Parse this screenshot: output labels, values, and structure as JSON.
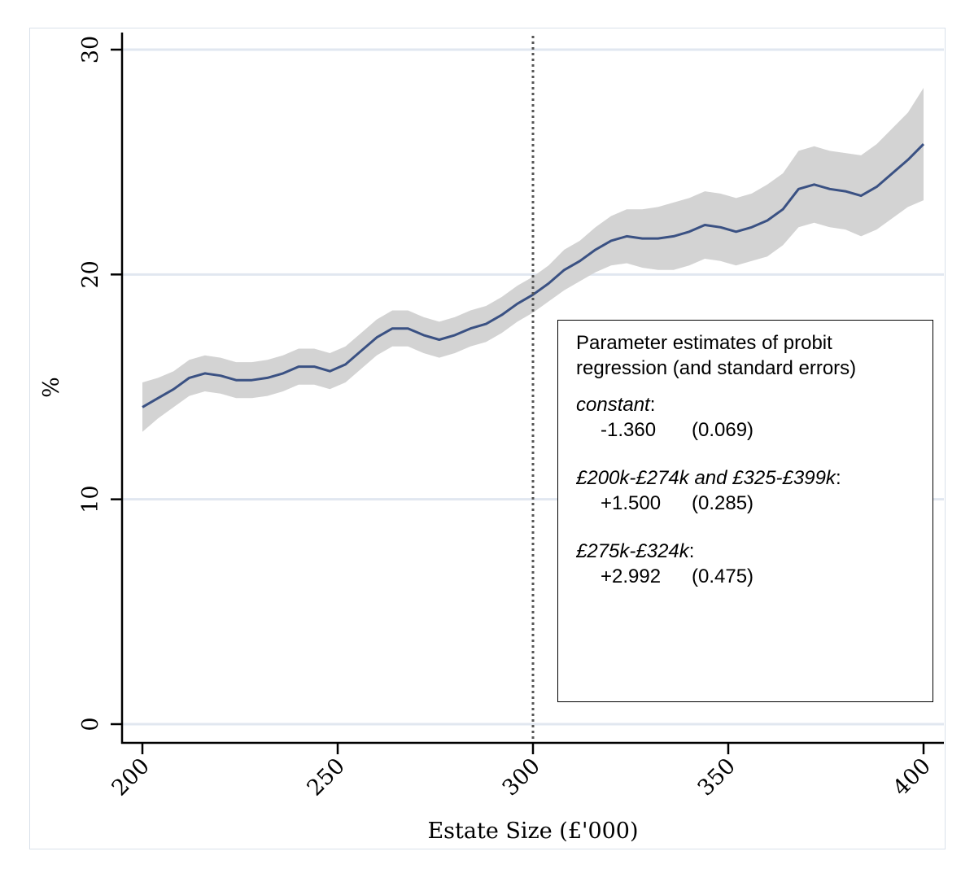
{
  "chart_data": {
    "type": "line",
    "xlabel": "Estate Size (£'000)",
    "ylabel": "%",
    "xlim": [
      200,
      400
    ],
    "ylim": [
      0,
      30
    ],
    "x_ticks": [
      200,
      250,
      300,
      350,
      400
    ],
    "y_ticks": [
      0,
      10,
      20,
      30
    ],
    "grid": "horizontal",
    "reference_line_x": 300,
    "series": [
      {
        "x": [
          200,
          204,
          208,
          212,
          216,
          220,
          224,
          228,
          232,
          236,
          240,
          244,
          248,
          252,
          256,
          260,
          264,
          268,
          272,
          276,
          280,
          284,
          288,
          292,
          296,
          300,
          304,
          308,
          312,
          316,
          320,
          324,
          328,
          332,
          336,
          340,
          344,
          348,
          352,
          356,
          360,
          364,
          368,
          372,
          376,
          380,
          384,
          388,
          392,
          396,
          400
        ],
        "y": [
          14.1,
          14.5,
          14.9,
          15.4,
          15.6,
          15.5,
          15.3,
          15.3,
          15.4,
          15.6,
          15.9,
          15.9,
          15.7,
          16.0,
          16.6,
          17.2,
          17.6,
          17.6,
          17.3,
          17.1,
          17.3,
          17.6,
          17.8,
          18.2,
          18.7,
          19.1,
          19.6,
          20.2,
          20.6,
          21.1,
          21.5,
          21.7,
          21.6,
          21.6,
          21.7,
          21.9,
          22.2,
          22.1,
          21.9,
          22.1,
          22.4,
          22.9,
          23.8,
          24.0,
          23.8,
          23.7,
          23.5,
          23.9,
          24.5,
          25.1,
          25.8
        ],
        "ci_lower": [
          13.0,
          13.6,
          14.1,
          14.6,
          14.8,
          14.7,
          14.5,
          14.5,
          14.6,
          14.8,
          15.1,
          15.1,
          14.9,
          15.2,
          15.8,
          16.4,
          16.8,
          16.8,
          16.5,
          16.3,
          16.5,
          16.8,
          17.0,
          17.4,
          17.9,
          18.3,
          18.8,
          19.3,
          19.7,
          20.1,
          20.4,
          20.5,
          20.3,
          20.2,
          20.2,
          20.4,
          20.7,
          20.6,
          20.4,
          20.6,
          20.8,
          21.3,
          22.1,
          22.3,
          22.1,
          22.0,
          21.7,
          22.0,
          22.5,
          23.0,
          23.3
        ],
        "ci_upper": [
          15.2,
          15.4,
          15.7,
          16.2,
          16.4,
          16.3,
          16.1,
          16.1,
          16.2,
          16.4,
          16.7,
          16.7,
          16.5,
          16.8,
          17.4,
          18.0,
          18.4,
          18.4,
          18.1,
          17.9,
          18.1,
          18.4,
          18.6,
          19.0,
          19.5,
          19.9,
          20.4,
          21.1,
          21.5,
          22.1,
          22.6,
          22.9,
          22.9,
          23.0,
          23.2,
          23.4,
          23.7,
          23.6,
          23.4,
          23.6,
          24.0,
          24.5,
          25.5,
          25.7,
          25.5,
          25.4,
          25.3,
          25.8,
          26.5,
          27.2,
          28.3
        ]
      }
    ]
  },
  "annotation": {
    "title": "Parameter estimates of probit regression (and standard errors)",
    "groups": [
      {
        "label": "constant",
        "colon": ":",
        "estimate": "-1.360",
        "se": "(0.069)"
      },
      {
        "label": "£200k-£274k and £325-£399k",
        "colon": ":",
        "estimate": "+1.500",
        "se": "(0.285)"
      },
      {
        "label": "£275k-£324k",
        "colon": ":",
        "estimate": "+2.992",
        "se": "(0.475)"
      }
    ]
  },
  "colors": {
    "line": "#3a5183",
    "band": "#d3d3d3",
    "grid": "#e1e7f0",
    "reference_line": "#555555"
  }
}
